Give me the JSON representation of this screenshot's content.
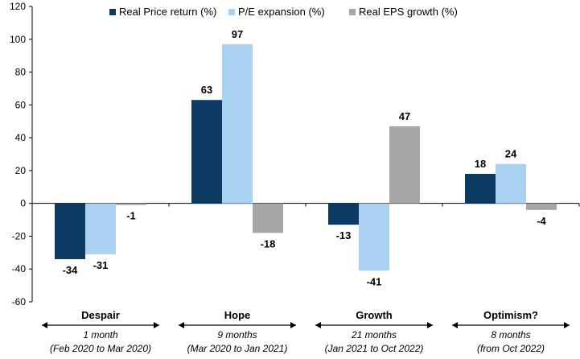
{
  "chart_data": {
    "type": "bar",
    "title": "",
    "xlabel": "",
    "ylabel": "",
    "ylim": [
      -60,
      120
    ],
    "yticks": [
      -60,
      -40,
      -20,
      0,
      20,
      40,
      60,
      80,
      100,
      120
    ],
    "legend_position": "top",
    "categories": [
      "Despair",
      "Hope",
      "Growth",
      "Optimism?"
    ],
    "category_details": [
      {
        "duration": "1 month",
        "period": "(Feb 2020 to Mar 2020)"
      },
      {
        "duration": "9 months",
        "period": "(Mar 2020 to Jan 2021)"
      },
      {
        "duration": "21 months",
        "period": "(Jan 2021 to Oct 2022)"
      },
      {
        "duration": "8 months",
        "period": "(from Oct 2022)"
      }
    ],
    "series": [
      {
        "name": "Real Price return (%)",
        "color": "#0b3a63",
        "values": [
          -34,
          63,
          -13,
          18
        ]
      },
      {
        "name": "P/E expansion (%)",
        "color": "#a9d1f0",
        "values": [
          -31,
          97,
          -41,
          24
        ]
      },
      {
        "name": "Real EPS growth (%)",
        "color": "#a6a6a6",
        "values": [
          -1,
          -18,
          47,
          -4
        ]
      }
    ]
  }
}
